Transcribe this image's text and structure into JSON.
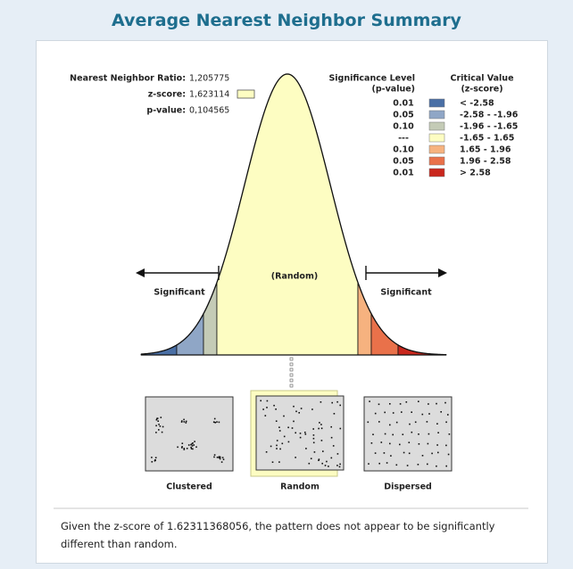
{
  "header": {
    "title": "Average Nearest Neighbor Summary"
  },
  "stats": [
    {
      "label": "Nearest Neighbor Ratio:",
      "value": "1,205775"
    },
    {
      "label": "z-score:",
      "value": "1,623114"
    },
    {
      "label": "p-value:",
      "value": "0,104565"
    }
  ],
  "legend": {
    "significance_header": [
      "Significance Level",
      "(p-value)"
    ],
    "critical_header": [
      "Critical Value",
      "(z-score)"
    ],
    "rows": [
      {
        "p": "0.01",
        "z": "< -2.58",
        "color": "#4a6fa5"
      },
      {
        "p": "0.05",
        "z": "-2.58 - -1.96",
        "color": "#8fa6c6"
      },
      {
        "p": "0.10",
        "z": "-1.96 - -1.65",
        "color": "#c4cbb6"
      },
      {
        "p": "---",
        "z": "-1.65 - 1.65",
        "color": "#fdfdc2"
      },
      {
        "p": "0.10",
        "z": "1.65 - 1.96",
        "color": "#f6b27f"
      },
      {
        "p": "0.05",
        "z": "1.96 - 2.58",
        "color": "#e9714a"
      },
      {
        "p": "0.01",
        "z": "> 2.58",
        "color": "#c9271d"
      }
    ]
  },
  "curve": {
    "center_label": "(Random)",
    "left_label": "Significant",
    "right_label": "Significant"
  },
  "patterns": [
    "Clustered",
    "Random",
    "Dispersed"
  ],
  "conclusion": "Given the z-score of 1.62311368056, the pattern does not appear to be significantly different than random."
}
